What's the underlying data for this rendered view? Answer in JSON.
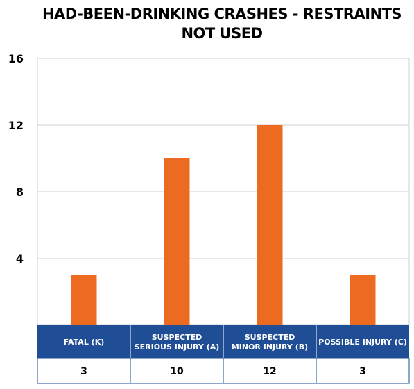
{
  "chart_data": {
    "type": "bar",
    "title": "HAD-BEEN-DRINKING CRASHES - RESTRAINTS NOT USED",
    "categories": [
      "FATAL (K)",
      "SUSPECTED SERIOUS INJURY (A)",
      "SUSPECTED MINOR INJURY (B)",
      "POSSIBLE INJURY (C)"
    ],
    "category_lines": [
      [
        "FATAL (K)"
      ],
      [
        "SUSPECTED",
        "SERIOUS INJURY (A)"
      ],
      [
        "SUSPECTED",
        "MINOR INJURY (B)"
      ],
      [
        "POSSIBLE INJURY (C)"
      ]
    ],
    "values": [
      3,
      10,
      12,
      3
    ],
    "ylim": [
      0,
      16
    ],
    "yticks": [
      4,
      8,
      12,
      16
    ],
    "grid": true,
    "legend": "none",
    "data_table": true,
    "colors": {
      "bar": "#ED6B21",
      "category_band": "#1F4E96",
      "grid": "#D0D0D0",
      "table_border": "#1F4E96"
    }
  }
}
